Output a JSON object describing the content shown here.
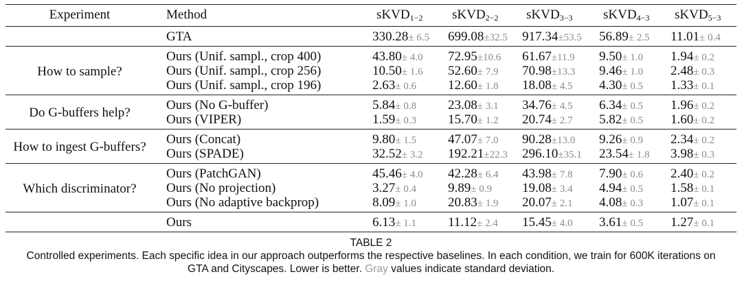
{
  "table": {
    "headers": {
      "experiment": "Experiment",
      "method": "Method",
      "metrics": [
        {
          "base": "sKVD",
          "sub": "1−2"
        },
        {
          "base": "sKVD",
          "sub": "2−2"
        },
        {
          "base": "sKVD",
          "sub": "3−3"
        },
        {
          "base": "sKVD",
          "sub": "4−3"
        },
        {
          "base": "sKVD",
          "sub": "5−3"
        }
      ]
    },
    "groups": [
      {
        "experiment": "",
        "rows": [
          {
            "method": "GTA",
            "values": [
              {
                "v": "330.28",
                "sd": "± 6.5"
              },
              {
                "v": "699.08",
                "sd": "±32.5"
              },
              {
                "v": "917.34",
                "sd": "±53.5"
              },
              {
                "v": "56.89",
                "sd": "± 2.5"
              },
              {
                "v": "11.01",
                "sd": "± 0.4"
              }
            ]
          }
        ]
      },
      {
        "experiment": "How to sample?",
        "rows": [
          {
            "method": "Ours (Unif. sampl., crop 400)",
            "values": [
              {
                "v": "43.80",
                "sd": "± 4.0"
              },
              {
                "v": "72.95",
                "sd": "±10.6"
              },
              {
                "v": "61.67",
                "sd": "±11.9"
              },
              {
                "v": "9.50",
                "sd": "± 1.0"
              },
              {
                "v": "1.94",
                "sd": "± 0.2"
              }
            ]
          },
          {
            "method": "Ours (Unif. sampl., crop 256)",
            "values": [
              {
                "v": "10.50",
                "sd": "± 1.6"
              },
              {
                "v": "52.60",
                "sd": "± 7.9"
              },
              {
                "v": "70.98",
                "sd": "±13.3"
              },
              {
                "v": "9.46",
                "sd": "± 1.0"
              },
              {
                "v": "2.48",
                "sd": "± 0.3"
              }
            ]
          },
          {
            "method": "Ours (Unif. sampl., crop 196)",
            "values": [
              {
                "v": "2.63",
                "sd": "± 0.6"
              },
              {
                "v": "12.60",
                "sd": "± 1.8"
              },
              {
                "v": "18.08",
                "sd": "± 4.5"
              },
              {
                "v": "4.30",
                "sd": "± 0.5"
              },
              {
                "v": "1.33",
                "sd": "± 0.1"
              }
            ]
          }
        ]
      },
      {
        "experiment": "Do G-buffers help?",
        "rows": [
          {
            "method": "Ours (No G-buffer)",
            "values": [
              {
                "v": "5.84",
                "sd": "± 0.8"
              },
              {
                "v": "23.08",
                "sd": "± 3.1"
              },
              {
                "v": "34.76",
                "sd": "± 4.5"
              },
              {
                "v": "6.34",
                "sd": "± 0.5"
              },
              {
                "v": "1.96",
                "sd": "± 0.2"
              }
            ]
          },
          {
            "method": "Ours (VIPER)",
            "values": [
              {
                "v": "1.59",
                "sd": "± 0.3"
              },
              {
                "v": "15.70",
                "sd": "± 1.2"
              },
              {
                "v": "20.74",
                "sd": "± 2.7"
              },
              {
                "v": "5.82",
                "sd": "± 0.5"
              },
              {
                "v": "1.60",
                "sd": "± 0.2"
              }
            ]
          }
        ]
      },
      {
        "experiment": "How to ingest G-buffers?",
        "rows": [
          {
            "method": "Ours (Concat)",
            "values": [
              {
                "v": "9.80",
                "sd": "± 1.5"
              },
              {
                "v": "47.07",
                "sd": "± 7.0"
              },
              {
                "v": "90.28",
                "sd": "±13.0"
              },
              {
                "v": "9.26",
                "sd": "± 0.9"
              },
              {
                "v": "2.34",
                "sd": "± 0.2"
              }
            ]
          },
          {
            "method": "Ours (SPADE)",
            "values": [
              {
                "v": "32.52",
                "sd": "± 3.2"
              },
              {
                "v": "192.21",
                "sd": "±22.3"
              },
              {
                "v": "296.10",
                "sd": "±35.1"
              },
              {
                "v": "23.54",
                "sd": "± 1.8"
              },
              {
                "v": "3.98",
                "sd": "± 0.3"
              }
            ]
          }
        ]
      },
      {
        "experiment": "Which discriminator?",
        "rows": [
          {
            "method": "Ours (PatchGAN)",
            "values": [
              {
                "v": "45.46",
                "sd": "± 4.0"
              },
              {
                "v": "42.28",
                "sd": "± 6.4"
              },
              {
                "v": "43.98",
                "sd": "± 7.8"
              },
              {
                "v": "7.90",
                "sd": "± 0.6"
              },
              {
                "v": "2.40",
                "sd": "± 0.2"
              }
            ]
          },
          {
            "method": "Ours (No projection)",
            "values": [
              {
                "v": "3.27",
                "sd": "± 0.4"
              },
              {
                "v": "9.89",
                "sd": "± 0.9"
              },
              {
                "v": "19.08",
                "sd": "± 3.4"
              },
              {
                "v": "4.94",
                "sd": "± 0.5"
              },
              {
                "v": "1.58",
                "sd": "± 0.1"
              }
            ]
          },
          {
            "method": "Ours (No adaptive backprop)",
            "values": [
              {
                "v": "8.09",
                "sd": "± 1.0"
              },
              {
                "v": "20.83",
                "sd": "± 1.9"
              },
              {
                "v": "20.07",
                "sd": "± 2.1"
              },
              {
                "v": "4.08",
                "sd": "± 0.3"
              },
              {
                "v": "1.07",
                "sd": "± 0.1"
              }
            ]
          }
        ]
      },
      {
        "experiment": "",
        "rows": [
          {
            "method": "Ours",
            "values": [
              {
                "v": "6.13",
                "sd": "± 1.1"
              },
              {
                "v": "11.12",
                "sd": "± 2.4"
              },
              {
                "v": "15.45",
                "sd": "± 4.0"
              },
              {
                "v": "3.61",
                "sd": "± 0.5"
              },
              {
                "v": "1.27",
                "sd": "± 0.1"
              }
            ]
          }
        ]
      }
    ]
  },
  "caption": {
    "label": "TABLE 2",
    "line1": "Controlled experiments. Each specific idea in our approach outperforms the respective baselines. In each condition, we train for 600K iterations on",
    "line2_pre": "GTA and Cityscapes. Lower is better.",
    "line2_gray": "Gray",
    "line2_post": "values indicate standard deviation."
  }
}
